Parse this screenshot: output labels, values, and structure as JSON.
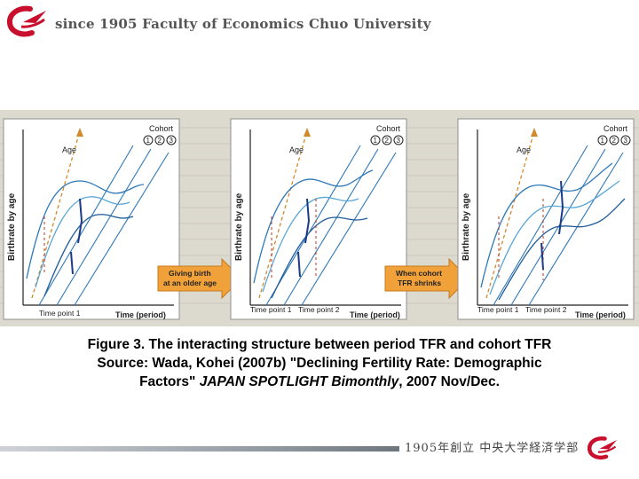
{
  "header": {
    "title": "since 1905 Faculty of  Economics Chuo University",
    "accent_color": "#c8102e"
  },
  "panels": [
    {
      "y_label": "Birthrate by age",
      "x_label": "Time (period)",
      "age_label": "Age",
      "cohort_label": "Cohort",
      "cohort_numbers": [
        "1",
        "2",
        "3"
      ],
      "time_points": [
        "Time point 1"
      ]
    },
    {
      "y_label": "Birthrate by age",
      "x_label": "Time (period)",
      "age_label": "Age",
      "cohort_label": "Cohort",
      "cohort_numbers": [
        "1",
        "2",
        "3"
      ],
      "time_points": [
        "Time point 1",
        "Time point 2"
      ]
    },
    {
      "y_label": "Birthrate by age",
      "x_label": "Time (period)",
      "age_label": "Age",
      "cohort_label": "Cohort",
      "cohort_numbers": [
        "1",
        "2",
        "3"
      ],
      "time_points": [
        "Time point 1",
        "Time point 2"
      ]
    }
  ],
  "arrows": [
    {
      "line1": "Giving birth",
      "line2": "at an older age"
    },
    {
      "line1": "When cohort",
      "line2": "TFR shrinks"
    }
  ],
  "caption": {
    "line1": "Figure 3. The interacting structure between period TFR and cohort TFR",
    "line2": "Source: Wada, Kohei (2007b) \"Declining Fertility Rate: Demographic",
    "line3_plain": "Factors\" ",
    "line3_italic": "JAPAN SPOTLIGHT Bimonthly",
    "line3_end": ", 2007 Nov/Dec."
  },
  "footer": {
    "text": "1905年創立 中央大学経済学部"
  }
}
